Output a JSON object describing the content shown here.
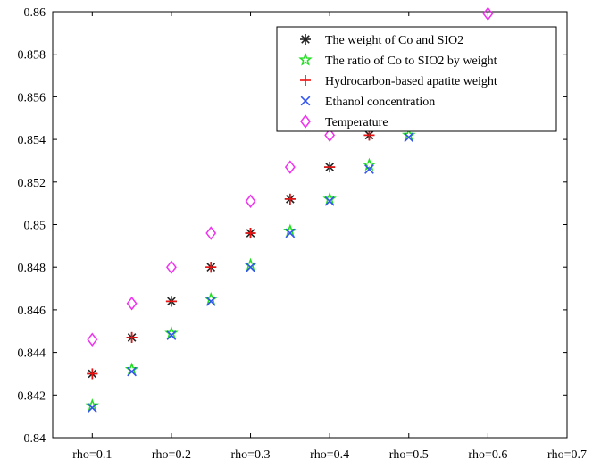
{
  "chart_data": {
    "type": "scatter",
    "title": "",
    "xlabel": "",
    "ylabel": "",
    "x_ticks": [
      "rho=0.1",
      "rho=0.2",
      "rho=0.3",
      "rho=0.4",
      "rho=0.5",
      "rho=0.6",
      "rho=0.7"
    ],
    "xlim": [
      0.05,
      0.7
    ],
    "ylim": [
      0.84,
      0.86
    ],
    "y_ticks": [
      0.84,
      0.842,
      0.844,
      0.846,
      0.848,
      0.85,
      0.852,
      0.854,
      0.856,
      0.858,
      0.86
    ],
    "y_tick_labels": [
      "0.84",
      "0.842",
      "0.844",
      "0.846",
      "0.848",
      "0.85",
      "0.852",
      "0.854",
      "0.856",
      "0.858",
      "0.86"
    ],
    "grid": false,
    "legend_position": "top-right",
    "series": [
      {
        "name": "The weight of Co and SIO2",
        "marker": "asterisk",
        "color": "#222222",
        "x": [
          0.1,
          0.15,
          0.2,
          0.25,
          0.3,
          0.35,
          0.4,
          0.45
        ],
        "y": [
          0.843,
          0.8447,
          0.8464,
          0.848,
          0.8496,
          0.8512,
          0.8527,
          0.8542
        ]
      },
      {
        "name": "The ratio of Co to SIO2 by weight",
        "marker": "star",
        "color": "#22dd22",
        "x": [
          0.1,
          0.15,
          0.2,
          0.25,
          0.3,
          0.35,
          0.4,
          0.45,
          0.5
        ],
        "y": [
          0.8415,
          0.8432,
          0.8449,
          0.8465,
          0.8481,
          0.8497,
          0.8512,
          0.8528,
          0.8542
        ]
      },
      {
        "name": "Hydrocarbon-based apatite weight",
        "marker": "plus",
        "color": "#ee1111",
        "x": [
          0.1,
          0.15,
          0.2,
          0.25,
          0.3,
          0.35,
          0.4,
          0.45
        ],
        "y": [
          0.843,
          0.8447,
          0.8464,
          0.848,
          0.8496,
          0.8512,
          0.8527,
          0.8542
        ]
      },
      {
        "name": "Ethanol concentration",
        "marker": "x",
        "color": "#3355ee",
        "x": [
          0.1,
          0.15,
          0.2,
          0.25,
          0.3,
          0.35,
          0.4,
          0.45,
          0.5
        ],
        "y": [
          0.8414,
          0.8431,
          0.8448,
          0.8464,
          0.848,
          0.8496,
          0.8511,
          0.8526,
          0.8541
        ]
      },
      {
        "name": "Temperature",
        "marker": "diamond",
        "color": "#ee33ee",
        "x": [
          0.1,
          0.15,
          0.2,
          0.25,
          0.3,
          0.35,
          0.4,
          0.6
        ],
        "y": [
          0.8446,
          0.8463,
          0.848,
          0.8496,
          0.8511,
          0.8527,
          0.8542,
          0.8599
        ]
      }
    ]
  }
}
